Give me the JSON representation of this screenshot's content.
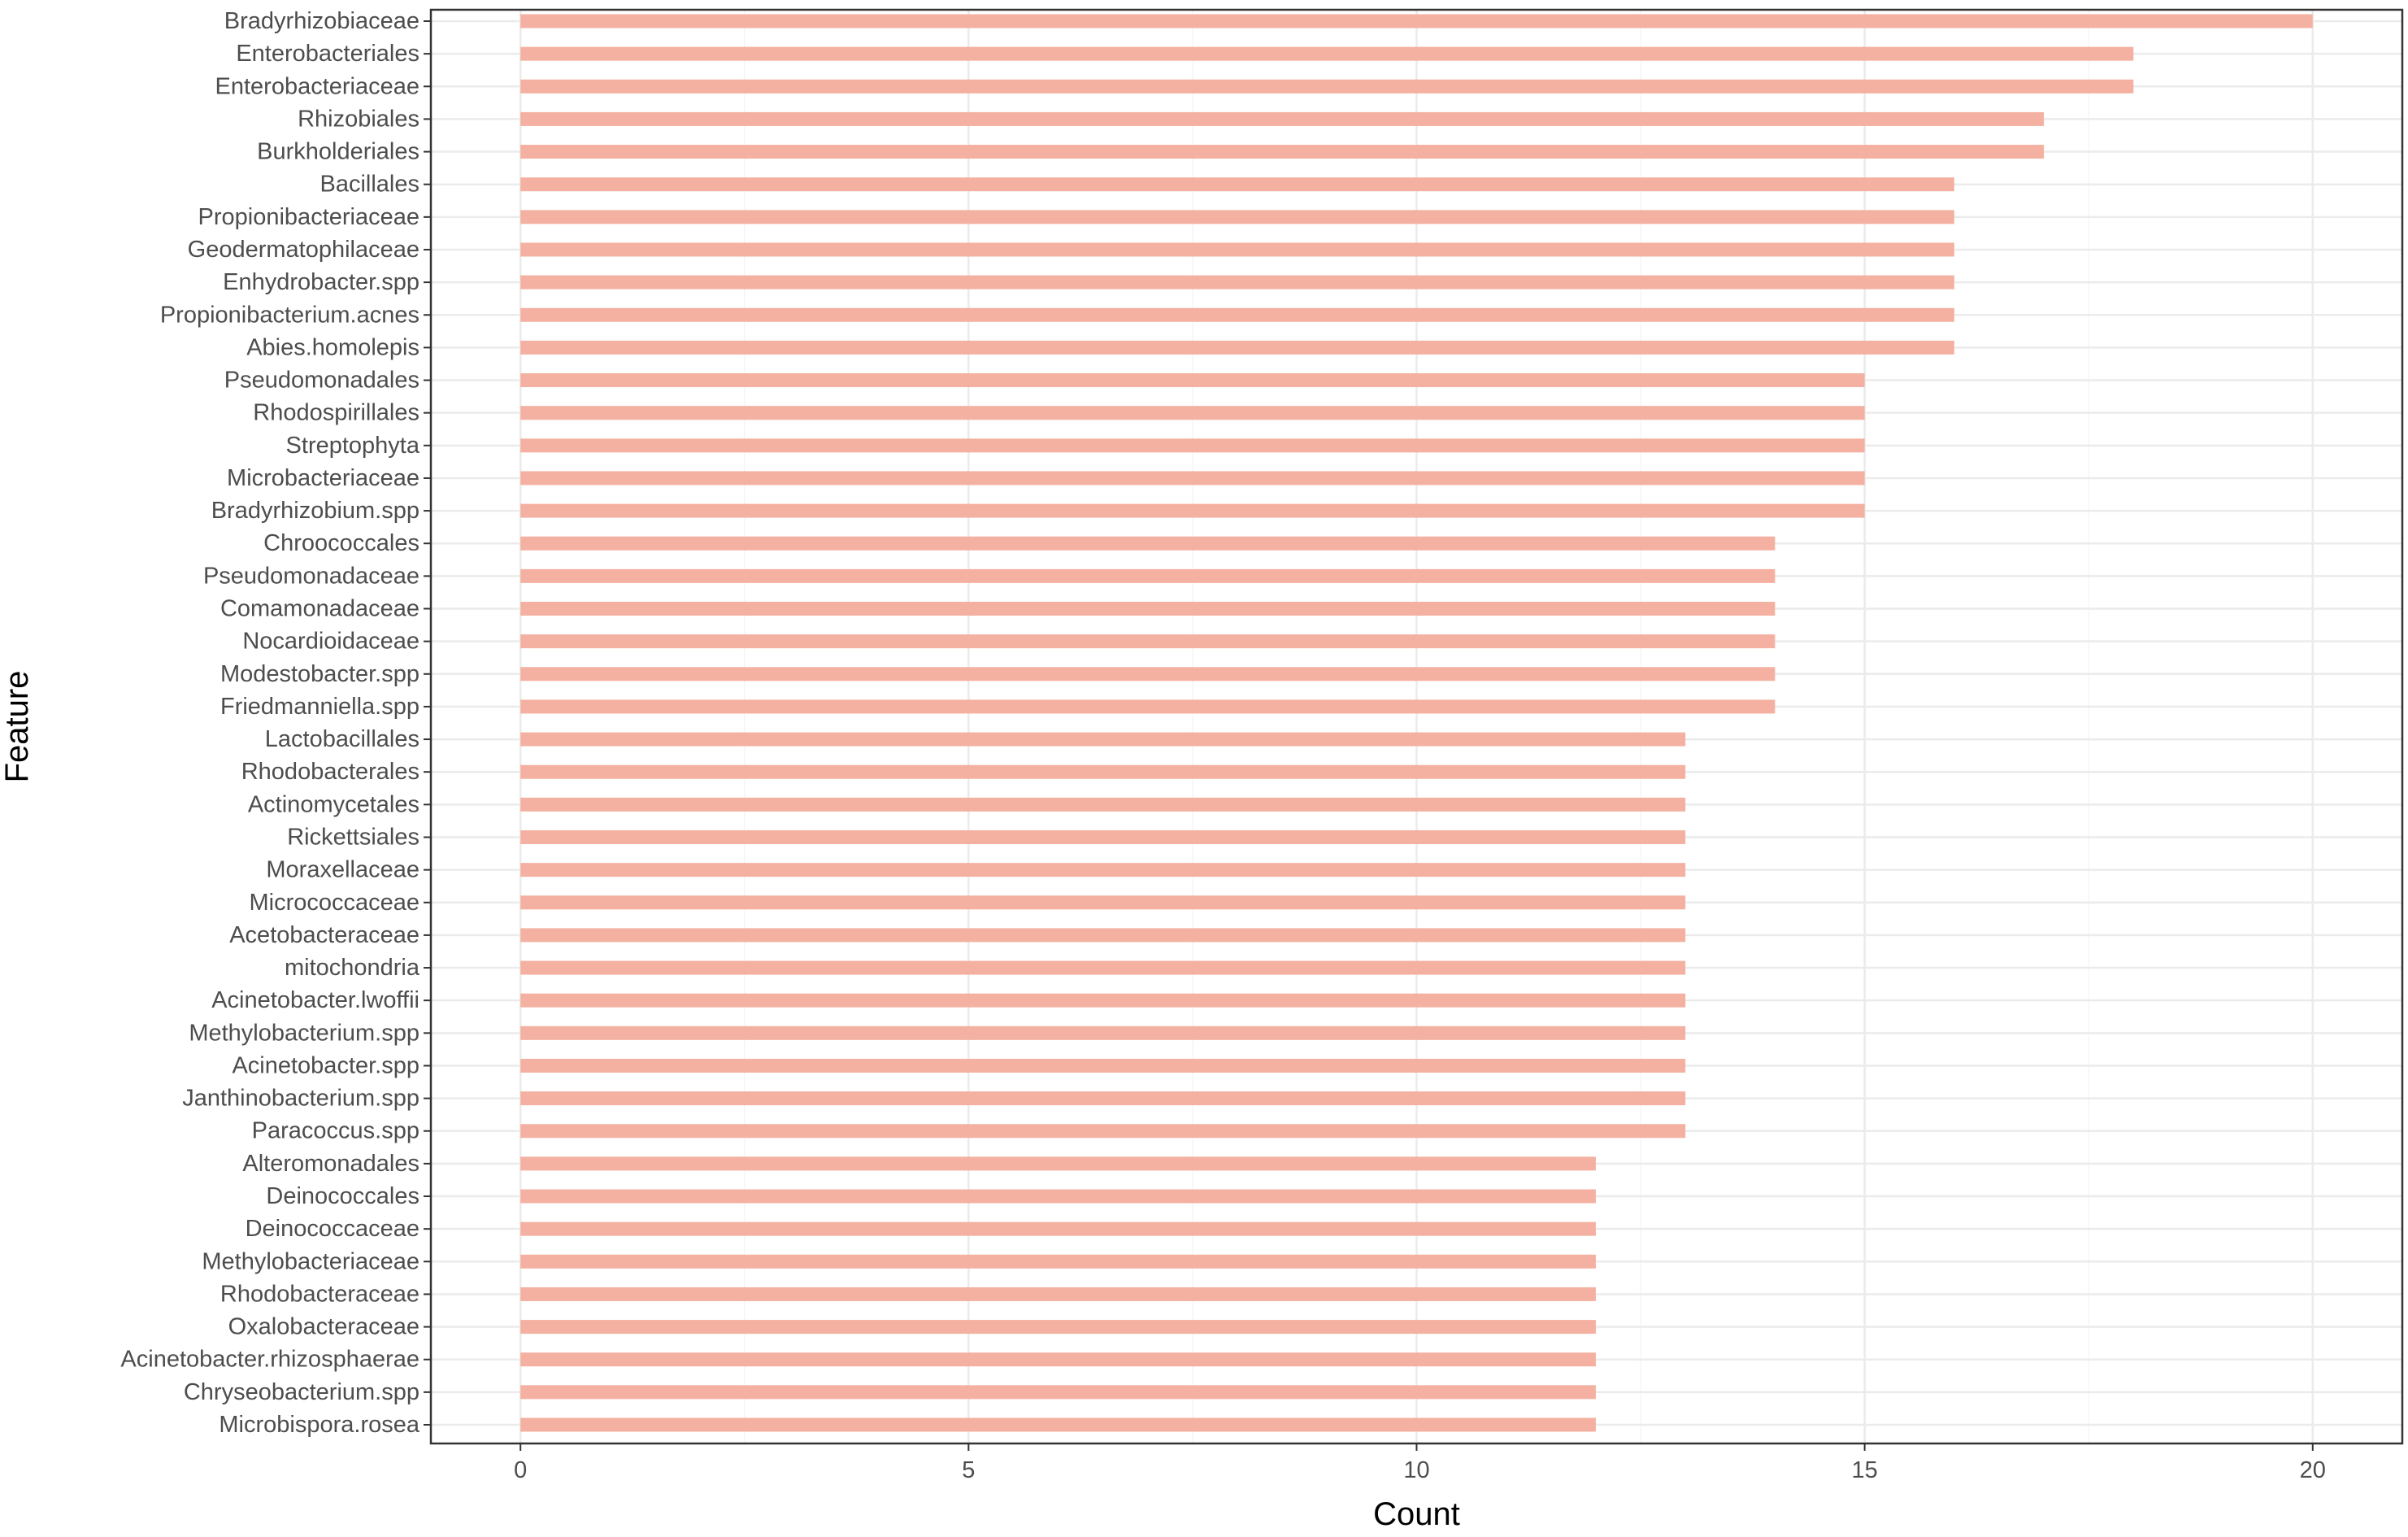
{
  "chart_data": {
    "type": "bar",
    "orientation": "horizontal",
    "title": "",
    "xlabel": "Count",
    "ylabel": "Feature",
    "xlim": [
      -1,
      21
    ],
    "x_ticks": [
      0,
      5,
      10,
      15,
      20
    ],
    "grid": true,
    "legend": "none",
    "bar_color": "#f4b0a0",
    "categories": [
      "Bradyrhizobiaceae",
      "Enterobacteriales",
      "Enterobacteriaceae",
      "Rhizobiales",
      "Burkholderiales",
      "Bacillales",
      "Propionibacteriaceae",
      "Geodermatophilaceae",
      "Enhydrobacter.spp",
      "Propionibacterium.acnes",
      "Abies.homolepis",
      "Pseudomonadales",
      "Rhodospirillales",
      "Streptophyta",
      "Microbacteriaceae",
      "Bradyrhizobium.spp",
      "Chroococcales",
      "Pseudomonadaceae",
      "Comamonadaceae",
      "Nocardioidaceae",
      "Modestobacter.spp",
      "Friedmanniella.spp",
      "Lactobacillales",
      "Rhodobacterales",
      "Actinomycetales",
      "Rickettsiales",
      "Moraxellaceae",
      "Micrococcaceae",
      "Acetobacteraceae",
      "mitochondria",
      "Acinetobacter.lwoffii",
      "Methylobacterium.spp",
      "Acinetobacter.spp",
      "Janthinobacterium.spp",
      "Paracoccus.spp",
      "Alteromonadales",
      "Deinococcales",
      "Deinococcaceae",
      "Methylobacteriaceae",
      "Rhodobacteraceae",
      "Oxalobacteraceae",
      "Acinetobacter.rhizosphaerae",
      "Chryseobacterium.spp",
      "Microbispora.rosea"
    ],
    "values": [
      20,
      18,
      18,
      17,
      17,
      16,
      16,
      16,
      16,
      16,
      16,
      15,
      15,
      15,
      15,
      15,
      14,
      14,
      14,
      14,
      14,
      14,
      13,
      13,
      13,
      13,
      13,
      13,
      13,
      13,
      13,
      13,
      13,
      13,
      13,
      12,
      12,
      12,
      12,
      12,
      12,
      12,
      12,
      12
    ]
  },
  "colors": {
    "bar": "#f4b0a0",
    "grid_major": "#ebebeb",
    "grid_minor": "#f5f5f5",
    "panel_border": "#333333",
    "tick_text": "#4d4d4d",
    "axis_title": "#000000"
  }
}
